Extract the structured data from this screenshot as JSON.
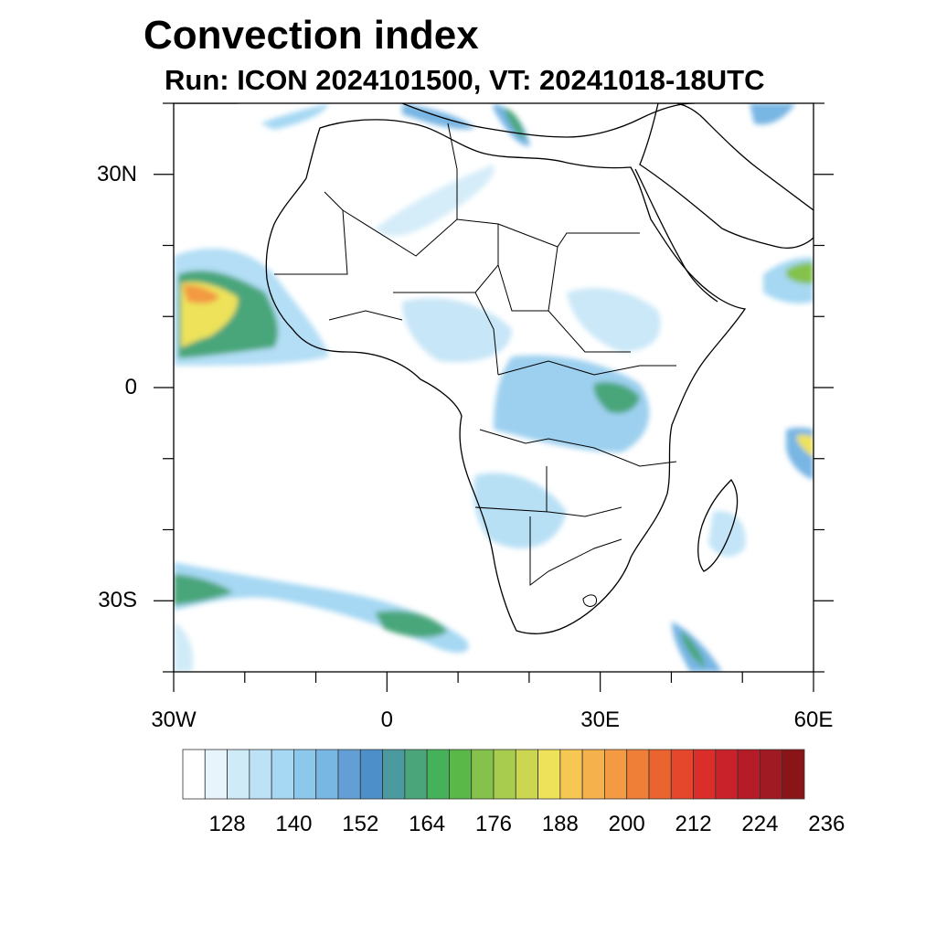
{
  "title": "Convection index",
  "subtitle": "Run: ICON 2024101500,  VT: 20241018-18UTC",
  "map": {
    "lon_range": [
      -30,
      60
    ],
    "lat_range": [
      -40,
      40
    ],
    "lat_labels": [
      "30N",
      "0",
      "30S"
    ],
    "lat_values": [
      30,
      0,
      -30
    ],
    "lon_labels": [
      "30W",
      "0",
      "30E",
      "60E"
    ],
    "lon_values": [
      -30,
      0,
      30,
      60
    ]
  },
  "colorbar": {
    "labels": [
      "128",
      "140",
      "152",
      "164",
      "176",
      "188",
      "200",
      "212",
      "224",
      "236"
    ],
    "colors": [
      "#ffffff",
      "#e8f4fb",
      "#d0ebf8",
      "#bde2f6",
      "#a6d8f3",
      "#8cc8ec",
      "#78b6e4",
      "#639fd5",
      "#4d8fc9",
      "#4a9aa0",
      "#4aa67a",
      "#45b25a",
      "#5ab849",
      "#84c24c",
      "#a8cc4e",
      "#cbd751",
      "#ede25a",
      "#f6c853",
      "#f5b14b",
      "#f39a42",
      "#ef7e36",
      "#ea6430",
      "#e4472b",
      "#db2e2a",
      "#c9222b",
      "#b51c28",
      "#a01a23",
      "#8a1518"
    ]
  },
  "colors": {
    "light": "#bde2f6",
    "mid": "#78b6e4",
    "green": "#4aa67a",
    "lime": "#84c24c",
    "yellow": "#ede25a",
    "orange": "#f39a42",
    "red": "#e4472b"
  }
}
